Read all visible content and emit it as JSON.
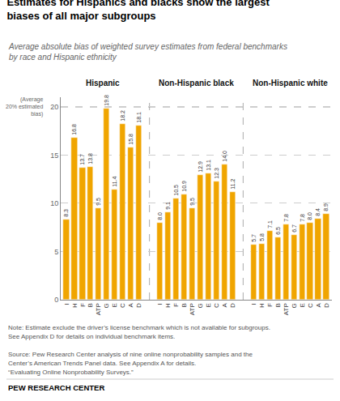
{
  "chart_data": {
    "type": "bar",
    "title": "Estimates for Hispanics and blacks show the largest\nbiases of all major subgroups",
    "subtitle": "Average absolute bias of weighted survey estimates from federal benchmarks\nby race and Hispanic ethnicity",
    "categories": [
      "I",
      "H",
      "F",
      "B",
      "ATP",
      "G",
      "E",
      "C",
      "A",
      "D"
    ],
    "series": [
      {
        "name": "Hispanic",
        "values": [
          8.3,
          16.8,
          13.7,
          13.8,
          9.5,
          19.8,
          11.4,
          18.2,
          15.8,
          18.1
        ],
        "value_labels": [
          "8.3",
          "16.8",
          "13.7",
          "13.8",
          "9.5",
          "19.8",
          "11.4",
          "18.2",
          "15.8",
          "18.1"
        ]
      },
      {
        "name": "Non-Hispanic black",
        "values": [
          8.0,
          9.1,
          10.5,
          10.9,
          9.5,
          12.9,
          13.1,
          12.3,
          14.0,
          11.2
        ],
        "value_labels": [
          "8.0",
          "9.1",
          "10.5",
          "10.9",
          "9.5",
          "12.9",
          "13.1",
          "12.3",
          "14.0",
          "11.2"
        ]
      },
      {
        "name": "Non-Hispanic white",
        "values": [
          5.7,
          5.8,
          7.1,
          6.5,
          7.8,
          6.7,
          7.8,
          8.0,
          8.4,
          8.9
        ],
        "value_labels": [
          "5.7",
          "5.8",
          "7.1",
          "6.5",
          "7.8",
          "6.7",
          "7.8",
          "8.0",
          "8.4",
          "8.9"
        ]
      }
    ],
    "color": "#F0A500",
    "ylim": [
      0,
      21
    ],
    "yticks": [
      0,
      5,
      10,
      15,
      20
    ],
    "grid": true,
    "data_labels": true,
    "annotations": [
      {
        "text": "(Average\n20% estimated\nbias)",
        "y": 20
      }
    ],
    "notes": [
      "Note: Estimate exclude the driver’s license benchmark which is not available for subgroups.",
      "See Appendix D for details on individual benchmark items."
    ],
    "source": [
      "Source: Pew Research Center analysis of nine online nonprobability samples and the",
      "Center’s American Trends Panel data. See Appendix A for details.",
      "“Evaluating Online Nonprobability Surveys.”"
    ],
    "footer": "PEW RESEARCH CENTER"
  }
}
